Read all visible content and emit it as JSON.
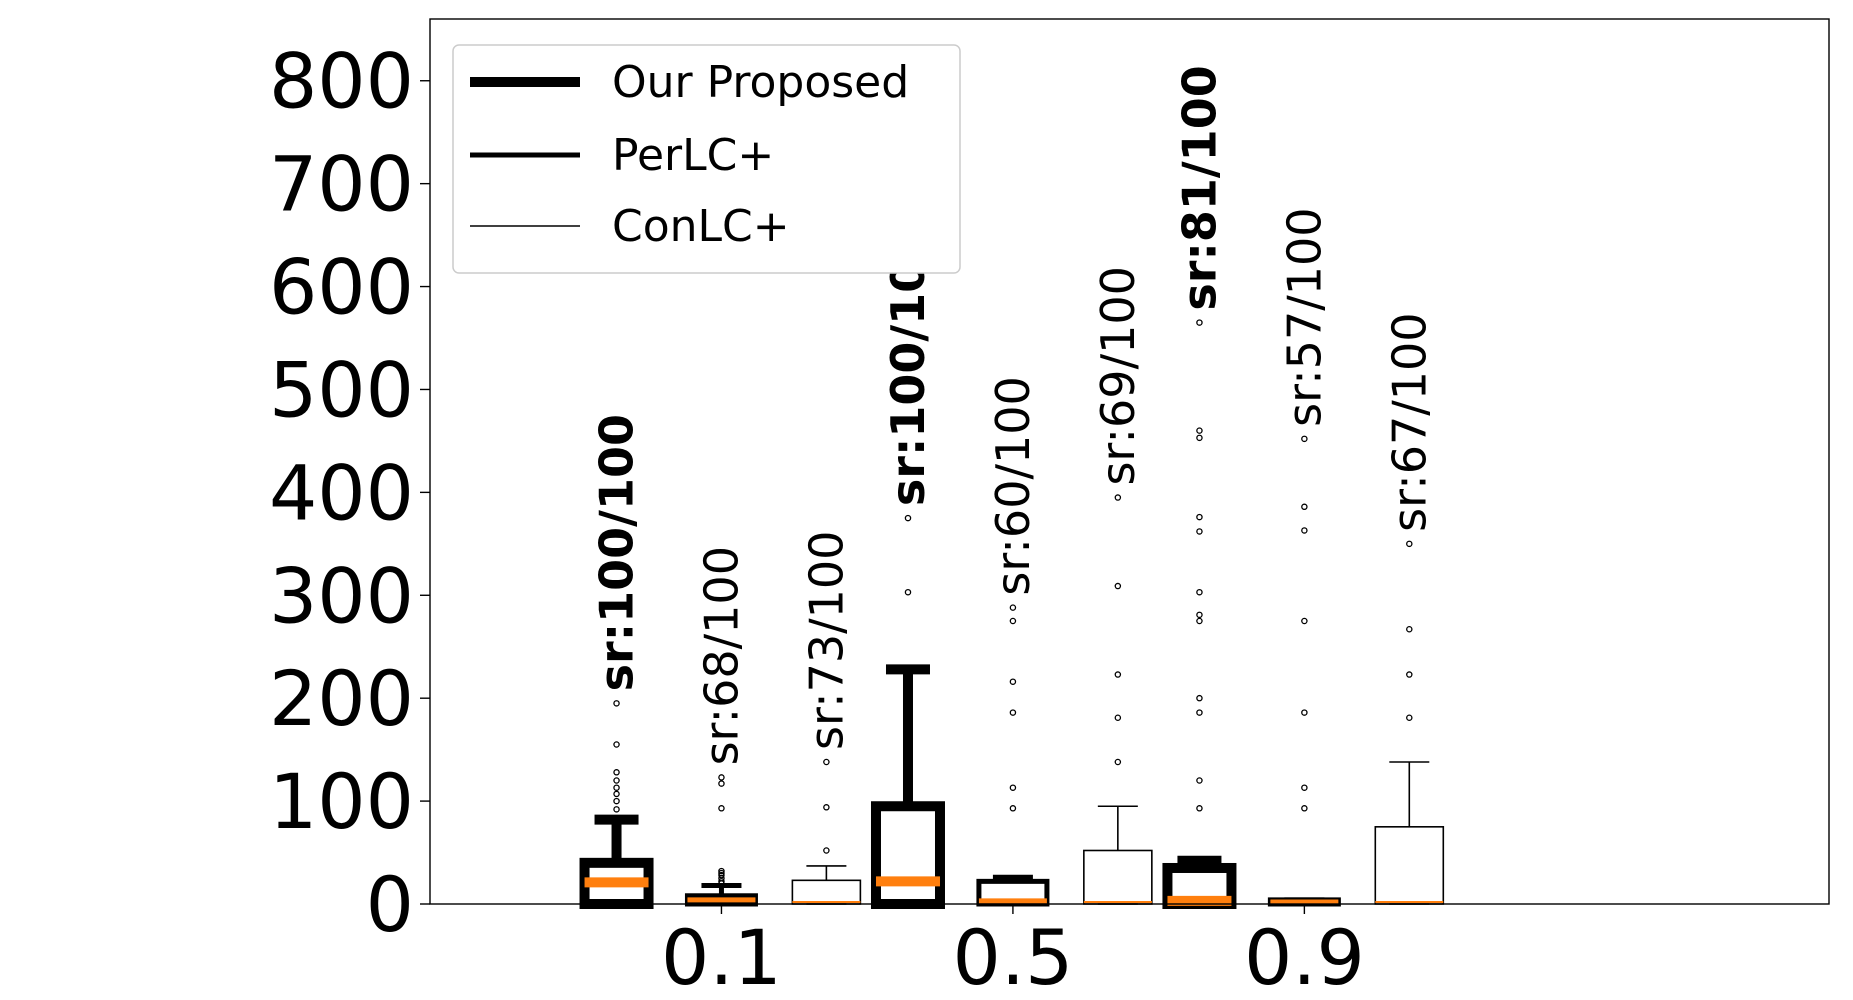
{
  "chart_data": {
    "type": "boxplot",
    "categories": [
      "0.1",
      "0.5",
      "0.9"
    ],
    "ylim": [
      0,
      860
    ],
    "yticks": [
      0,
      100,
      200,
      300,
      400,
      500,
      600,
      700,
      800
    ],
    "xlabel": "",
    "ylabel": "",
    "title": "",
    "legend_position": "top-left",
    "median_color": "#ff7f0e",
    "series": [
      {
        "name": "Our Proposed",
        "line_weight": "thick",
        "boxes": [
          {
            "whisker_low": 0,
            "q1": 0,
            "median": 21,
            "q3": 40,
            "whisker_high": 82,
            "outliers": [
              92,
              100,
              107,
              113,
              120,
              128,
              155,
              195
            ],
            "sr_label": "sr:100/100",
            "bold": true
          },
          {
            "whisker_low": 0,
            "q1": 0,
            "median": 22,
            "q3": 95,
            "whisker_high": 228,
            "outliers": [
              303,
              375
            ],
            "sr_label": "sr:100/100",
            "bold": true
          },
          {
            "whisker_low": 0,
            "q1": 0,
            "median": 3,
            "q3": 35,
            "whisker_high": 42,
            "outliers": [
              93,
              120,
              186,
              200,
              275,
              281,
              303,
              362,
              376,
              453,
              460,
              565
            ],
            "sr_label": "sr:81/100",
            "bold": true
          }
        ]
      },
      {
        "name": "PerLC+",
        "line_weight": "medium",
        "boxes": [
          {
            "whisker_low": 0,
            "q1": 0,
            "median": 4,
            "q3": 8,
            "whisker_high": 18,
            "outliers": [
              20,
              22,
              25,
              28,
              30,
              32,
              93,
              117,
              123
            ],
            "sr_label": "sr:68/100",
            "bold": false
          },
          {
            "whisker_low": 0,
            "q1": 0,
            "median": 3,
            "q3": 22,
            "whisker_high": 26,
            "outliers": [
              93,
              113,
              186,
              216,
              275,
              288
            ],
            "sr_label": "sr:60/100",
            "bold": false
          },
          {
            "whisker_low": 0,
            "q1": 0,
            "median": 2,
            "q3": 4,
            "whisker_high": 4,
            "outliers": [
              93,
              113,
              186,
              275,
              363,
              386,
              452
            ],
            "sr_label": "sr:57/100",
            "bold": false
          }
        ]
      },
      {
        "name": "ConLC+",
        "line_weight": "thin",
        "boxes": [
          {
            "whisker_low": 0,
            "q1": 0,
            "median": 2,
            "q3": 23,
            "whisker_high": 37,
            "outliers": [
              52,
              94,
              138
            ],
            "sr_label": "sr:73/100",
            "bold": false
          },
          {
            "whisker_low": 0,
            "q1": 0,
            "median": 2,
            "q3": 52,
            "whisker_high": 95,
            "outliers": [
              138,
              181,
              223,
              309,
              395
            ],
            "sr_label": "sr:69/100",
            "bold": false
          },
          {
            "whisker_low": 0,
            "q1": 0,
            "median": 2,
            "q3": 75,
            "whisker_high": 138,
            "outliers": [
              181,
              223,
              267,
              350
            ],
            "sr_label": "sr:67/100",
            "bold": false
          }
        ]
      }
    ]
  }
}
